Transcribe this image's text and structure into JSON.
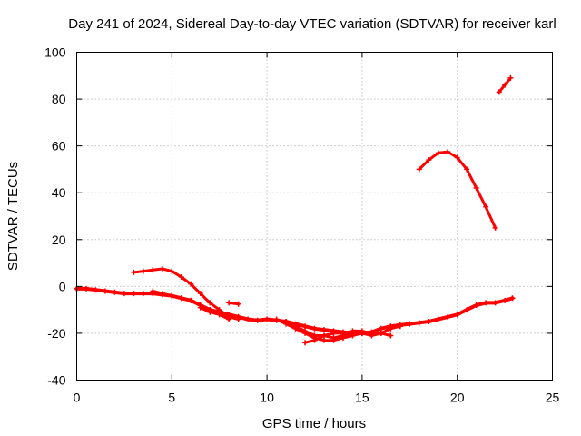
{
  "chart_data": {
    "type": "line",
    "title": "Day 241 of 2024, Sidereal Day-to-day VTEC variation (SDTVAR) for receiver karl",
    "xlabel": "GPS time / hours",
    "ylabel": "SDTVAR / TECUs",
    "xlim": [
      0,
      25
    ],
    "ylim": [
      -40,
      100
    ],
    "xticks": [
      0,
      5,
      10,
      15,
      20,
      25
    ],
    "yticks": [
      -40,
      -20,
      0,
      20,
      40,
      60,
      80,
      100
    ],
    "grid": true,
    "color": "#ff0000",
    "series": [
      {
        "name": "arc-main-baseline",
        "width": 4,
        "x": [
          0,
          0.5,
          1,
          1.5,
          2,
          2.5,
          3,
          3.5,
          4,
          4.5,
          5,
          5.5,
          6,
          6.5,
          7,
          7.5,
          8,
          8.5,
          9,
          9.5,
          10,
          10.5,
          11,
          11.5,
          12,
          12.5,
          13,
          13.5,
          14,
          14.5,
          15,
          15.5,
          16,
          16.5,
          17,
          17.5,
          18,
          18.5,
          19,
          19.5,
          20,
          20.5,
          21,
          21.5,
          22,
          22.5,
          22.9
        ],
        "y": [
          -1,
          -1,
          -1.5,
          -2,
          -2.5,
          -3,
          -3,
          -3,
          -3,
          -3.5,
          -4,
          -5,
          -6,
          -8,
          -10,
          -11,
          -12,
          -13,
          -14,
          -14.5,
          -14,
          -14.5,
          -15,
          -16,
          -17,
          -18,
          -18.5,
          -19,
          -19.5,
          -20,
          -20,
          -19.5,
          -18,
          -17,
          -16.5,
          -16,
          -15.5,
          -15,
          -14,
          -13,
          -12,
          -10,
          -8,
          -7,
          -7,
          -6,
          -5
        ]
      },
      {
        "name": "arc-lower-dip",
        "width": 3,
        "x": [
          10.5,
          11,
          11.5,
          12,
          12.5,
          13,
          13.5,
          14,
          14.5,
          15
        ],
        "y": [
          -14,
          -16,
          -18,
          -20,
          -22,
          -23,
          -23,
          -22,
          -21,
          -20
        ]
      },
      {
        "name": "arc-mid-dip",
        "width": 3,
        "x": [
          11,
          11.5,
          12,
          12.5,
          13,
          13.5,
          14,
          14.5,
          15,
          15.5,
          16,
          16.5,
          17
        ],
        "y": [
          -15,
          -17,
          -19,
          -21,
          -21,
          -22,
          -21,
          -20,
          -20,
          -21,
          -20,
          -18,
          -17
        ]
      },
      {
        "name": "arc-crossing",
        "width": 3,
        "x": [
          12,
          12.5,
          13,
          13.5,
          14,
          14.5,
          15,
          15.5,
          16,
          16.5
        ],
        "y": [
          -24,
          -23,
          -21,
          -20,
          -20,
          -19,
          -19,
          -20,
          -20,
          -21
        ]
      },
      {
        "name": "arc-morning-hump",
        "width": 3,
        "x": [
          3,
          3.5,
          4,
          4.5,
          5,
          5.5,
          6,
          6.5,
          7,
          7.5,
          8
        ],
        "y": [
          6,
          6.5,
          7,
          7.5,
          6.5,
          4,
          1,
          -3,
          -7,
          -10,
          -13
        ]
      },
      {
        "name": "arc-morning-descent",
        "width": 3,
        "x": [
          4,
          4.5,
          5,
          5.5,
          6,
          6.5,
          7,
          7.5,
          8,
          8.5
        ],
        "y": [
          -2,
          -3,
          -4,
          -5,
          -6,
          -8,
          -10,
          -12,
          -13,
          -14
        ]
      },
      {
        "name": "arc-morning-short",
        "width": 3,
        "x": [
          6.5,
          7,
          7.5,
          8
        ],
        "y": [
          -9,
          -11,
          -12,
          -14
        ]
      },
      {
        "name": "arc-small-dash",
        "width": 3,
        "x": [
          8,
          8.5
        ],
        "y": [
          -7,
          -7.5
        ]
      },
      {
        "name": "arc-evening-hump",
        "width": 3,
        "x": [
          18,
          18.5,
          19,
          19.5,
          20,
          20.5,
          21,
          21.5,
          22
        ],
        "y": [
          50,
          54,
          57,
          57.5,
          55,
          50,
          42,
          34,
          25
        ]
      },
      {
        "name": "arc-late-segment",
        "width": 3,
        "x": [
          22.2,
          22.5,
          22.8
        ],
        "y": [
          83,
          86,
          89
        ]
      }
    ]
  }
}
